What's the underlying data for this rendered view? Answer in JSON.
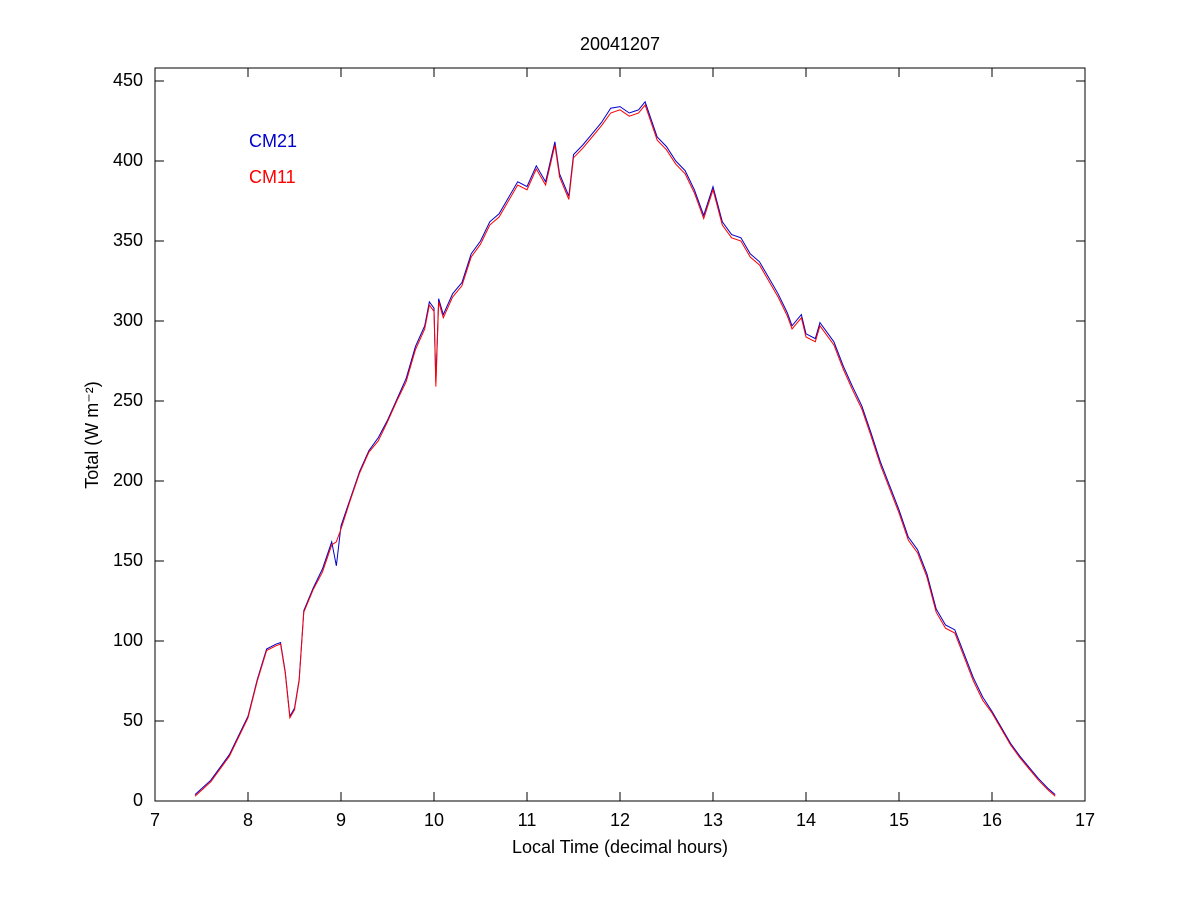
{
  "chart_data": {
    "type": "line",
    "title": "20041207",
    "xlabel": "Local Time (decimal hours)",
    "ylabel": "Total (W m⁻²)",
    "xlim": [
      7,
      17
    ],
    "xticks": [
      7,
      8,
      9,
      10,
      11,
      12,
      13,
      14,
      15,
      16,
      17
    ],
    "ylim": [
      0,
      450
    ],
    "yticks": [
      0,
      50,
      100,
      150,
      200,
      250,
      300,
      350,
      400,
      450
    ],
    "grid": false,
    "legend": "upper left",
    "x": [
      7.43,
      7.6,
      7.8,
      8.0,
      8.1,
      8.2,
      8.3,
      8.35,
      8.4,
      8.45,
      8.5,
      8.55,
      8.6,
      8.7,
      8.8,
      8.9,
      8.95,
      9.0,
      9.1,
      9.2,
      9.3,
      9.4,
      9.5,
      9.6,
      9.7,
      9.8,
      9.9,
      9.95,
      10.0,
      10.02,
      10.05,
      10.1,
      10.2,
      10.3,
      10.4,
      10.5,
      10.6,
      10.7,
      10.8,
      10.9,
      11.0,
      11.1,
      11.2,
      11.3,
      11.35,
      11.45,
      11.5,
      11.6,
      11.7,
      11.8,
      11.9,
      12.0,
      12.1,
      12.2,
      12.27,
      12.4,
      12.5,
      12.6,
      12.7,
      12.8,
      12.9,
      13.0,
      13.1,
      13.2,
      13.3,
      13.4,
      13.5,
      13.6,
      13.7,
      13.8,
      13.85,
      13.95,
      14.0,
      14.1,
      14.15,
      14.3,
      14.4,
      14.5,
      14.6,
      14.7,
      14.8,
      14.9,
      15.0,
      15.1,
      15.2,
      15.3,
      15.4,
      15.5,
      15.6,
      15.7,
      15.8,
      15.9,
      16.0,
      16.1,
      16.2,
      16.3,
      16.4,
      16.5,
      16.6,
      16.68
    ],
    "series": [
      {
        "name": "CM21",
        "color": "#0000cc",
        "values": [
          4,
          13,
          29,
          53,
          76,
          95,
          98,
          99,
          81,
          53,
          58,
          76,
          119,
          133,
          145,
          162,
          147,
          172,
          189,
          206,
          219,
          227,
          238,
          251,
          264,
          284,
          297,
          312,
          308,
          262,
          314,
          304,
          317,
          324,
          342,
          350,
          362,
          367,
          377,
          387,
          384,
          397,
          387,
          412,
          392,
          378,
          404,
          410,
          417,
          424,
          433,
          434,
          430,
          432,
          437,
          415,
          409,
          400,
          394,
          382,
          366,
          384,
          362,
          354,
          352,
          342,
          337,
          327,
          317,
          305,
          297,
          304,
          292,
          289,
          299,
          287,
          272,
          259,
          247,
          230,
          212,
          197,
          182,
          165,
          157,
          142,
          120,
          110,
          107,
          92,
          77,
          65,
          56,
          46,
          36,
          28,
          21,
          14,
          8,
          4
        ]
      },
      {
        "name": "CM11",
        "color": "#ff0000",
        "values": [
          3,
          12,
          28,
          52,
          75,
          94,
          97,
          98,
          80,
          52,
          57,
          75,
          118,
          132,
          143,
          160,
          162,
          170,
          188,
          205,
          218,
          225,
          237,
          250,
          262,
          282,
          295,
          310,
          306,
          259,
          312,
          302,
          315,
          322,
          340,
          348,
          360,
          365,
          375,
          385,
          382,
          395,
          385,
          410,
          390,
          376,
          402,
          408,
          415,
          422,
          430,
          432,
          428,
          430,
          435,
          413,
          407,
          398,
          392,
          380,
          364,
          382,
          360,
          352,
          350,
          340,
          335,
          325,
          315,
          303,
          295,
          302,
          290,
          287,
          297,
          285,
          270,
          257,
          245,
          228,
          210,
          195,
          180,
          163,
          155,
          140,
          118,
          108,
          105,
          90,
          75,
          63,
          55,
          45,
          35,
          27,
          20,
          13,
          7,
          3
        ]
      }
    ]
  }
}
